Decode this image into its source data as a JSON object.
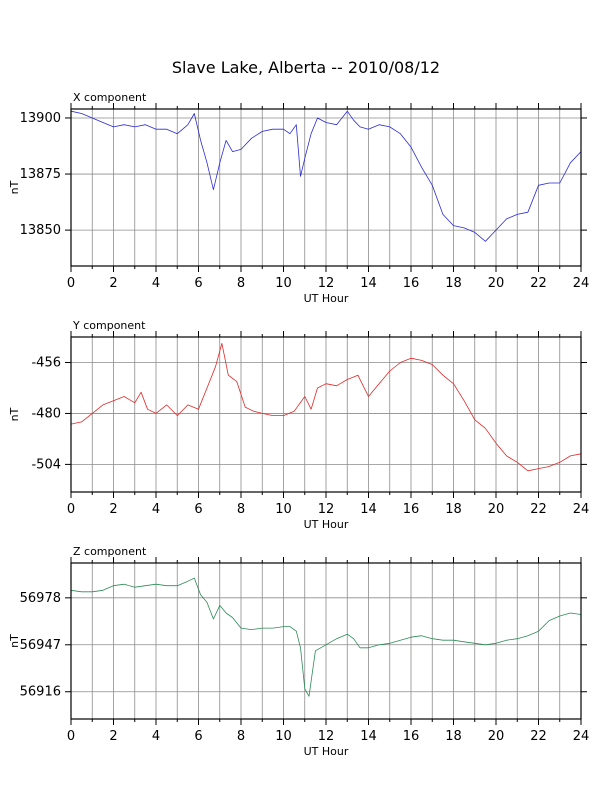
{
  "page": {
    "title": "Slave Lake, Alberta -- 2010/08/12"
  },
  "chart_data": [
    {
      "type": "line",
      "title": "X component",
      "xlabel": "UT Hour",
      "ylabel": "nT",
      "xlim": [
        0,
        24
      ],
      "ylim": [
        13834,
        13904
      ],
      "x_ticks": [
        0,
        2,
        4,
        6,
        8,
        10,
        12,
        14,
        16,
        18,
        20,
        22,
        24
      ],
      "y_ticks": [
        13850,
        13875,
        13900
      ],
      "grid": true,
      "color": "#2b2bd6",
      "series": [
        {
          "x": [
            0,
            0.5,
            1,
            1.5,
            2,
            2.5,
            3,
            3.5,
            4,
            4.5,
            5,
            5.5,
            5.8,
            6.1,
            6.4,
            6.7,
            7,
            7.3,
            7.6,
            8,
            8.5,
            9,
            9.5,
            10,
            10.3,
            10.6,
            10.8,
            11,
            11.3,
            11.6,
            12,
            12.5,
            13,
            13.3,
            13.6,
            14,
            14.5,
            15,
            15.5,
            16,
            16.5,
            17,
            17.5,
            18,
            18.5,
            19,
            19.5,
            20,
            20.5,
            21,
            21.5,
            22,
            22.5,
            23,
            23.5,
            24
          ],
          "y": [
            13903,
            13902,
            13900,
            13898,
            13896,
            13897,
            13896,
            13897,
            13895,
            13895,
            13893,
            13897,
            13902,
            13890,
            13880,
            13868,
            13880,
            13890,
            13885,
            13886,
            13891,
            13894,
            13895,
            13895,
            13893,
            13897,
            13874,
            13882,
            13893,
            13900,
            13898,
            13897,
            13903,
            13899,
            13896,
            13895,
            13897,
            13896,
            13893,
            13887,
            13878,
            13870,
            13857,
            13852,
            13851,
            13849,
            13845,
            13850,
            13855,
            13857,
            13858,
            13870,
            13871,
            13871,
            13880,
            13885
          ]
        }
      ]
    },
    {
      "type": "line",
      "title": "Y component",
      "xlabel": "UT Hour",
      "ylabel": "nT",
      "xlim": [
        0,
        24
      ],
      "ylim": [
        -517,
        -444
      ],
      "x_ticks": [
        0,
        2,
        4,
        6,
        8,
        10,
        12,
        14,
        16,
        18,
        20,
        22,
        24
      ],
      "y_ticks": [
        -504,
        -480,
        -456
      ],
      "grid": true,
      "color": "#e02828",
      "series": [
        {
          "x": [
            0,
            0.5,
            1,
            1.5,
            2,
            2.5,
            3,
            3.3,
            3.6,
            4,
            4.5,
            5,
            5.5,
            6,
            6.4,
            6.8,
            7.1,
            7.4,
            7.8,
            8.2,
            8.6,
            9,
            9.5,
            10,
            10.5,
            11,
            11.3,
            11.6,
            12,
            12.5,
            13,
            13.5,
            14,
            14.5,
            15,
            15.5,
            16,
            16.5,
            17,
            17.5,
            18,
            18.5,
            19,
            19.5,
            20,
            20.5,
            21,
            21.5,
            22,
            22.5,
            23,
            23.5,
            24
          ],
          "y": [
            -485,
            -484,
            -480,
            -476,
            -474,
            -472,
            -475,
            -470,
            -478,
            -480,
            -476,
            -481,
            -476,
            -478,
            -468,
            -458,
            -447,
            -462,
            -465,
            -477,
            -479,
            -480,
            -481,
            -481,
            -479,
            -472,
            -478,
            -468,
            -466,
            -467,
            -464,
            -462,
            -472,
            -466,
            -460,
            -456,
            -454,
            -455,
            -457,
            -462,
            -466,
            -474,
            -483,
            -487,
            -494,
            -500,
            -503,
            -507,
            -506,
            -505,
            -503,
            -500,
            -499
          ]
        }
      ]
    },
    {
      "type": "line",
      "title": "Z component",
      "xlabel": "UT Hour",
      "ylabel": "nT",
      "xlim": [
        0,
        24
      ],
      "ylim": [
        56898,
        57001
      ],
      "x_ticks": [
        0,
        2,
        4,
        6,
        8,
        10,
        12,
        14,
        16,
        18,
        20,
        22,
        24
      ],
      "y_ticks": [
        56916,
        56947,
        56978
      ],
      "grid": true,
      "color": "#2e8b57",
      "series": [
        {
          "x": [
            0,
            0.5,
            1,
            1.5,
            2,
            2.5,
            3,
            3.5,
            4,
            4.5,
            5,
            5.5,
            5.8,
            6.1,
            6.4,
            6.7,
            7,
            7.3,
            7.6,
            8,
            8.5,
            9,
            9.5,
            10,
            10.3,
            10.6,
            10.8,
            11,
            11.2,
            11.5,
            12,
            12.5,
            13,
            13.3,
            13.6,
            14,
            14.5,
            15,
            15.5,
            16,
            16.5,
            17,
            17.5,
            18,
            18.5,
            19,
            19.5,
            20,
            20.5,
            21,
            21.5,
            22,
            22.5,
            23,
            23.5,
            24
          ],
          "y": [
            56983,
            56982,
            56982,
            56983,
            56986,
            56987,
            56985,
            56986,
            56987,
            56986,
            56986,
            56989,
            56991,
            56980,
            56975,
            56964,
            56973,
            56968,
            56965,
            56958,
            56957,
            56958,
            56958,
            56959,
            56959,
            56956,
            56945,
            56918,
            56913,
            56943,
            56947,
            56951,
            56954,
            56951,
            56945,
            56945,
            56947,
            56948,
            56950,
            56952,
            56953,
            56951,
            56950,
            56950,
            56949,
            56948,
            56947,
            56948,
            56950,
            56951,
            56953,
            56956,
            56963,
            56966,
            56968,
            56967
          ]
        }
      ]
    }
  ]
}
